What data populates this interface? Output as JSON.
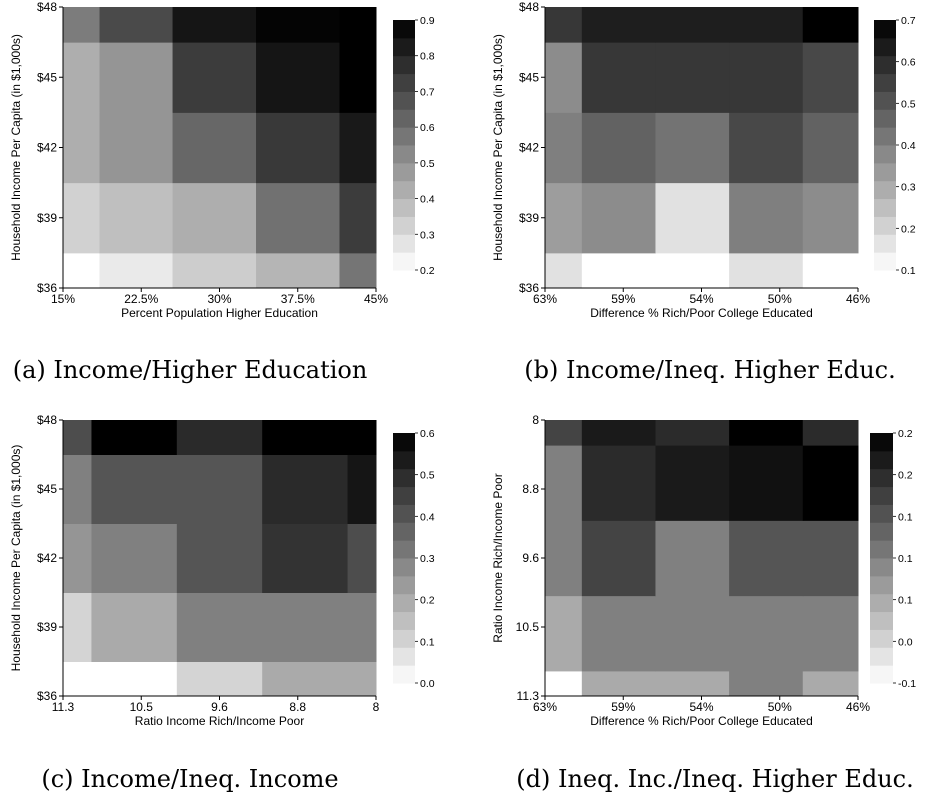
{
  "chart_data": [
    {
      "type": "heatmap",
      "caption": "(a) Income/Higher Education",
      "xlabel": "Percent Population Higher Education",
      "ylabel": "Household Income Per Capita (in $1,000s)",
      "xticks": [
        "15%",
        "22.5%",
        "30%",
        "37.5%",
        "45%"
      ],
      "yticks": [
        "$36",
        "$39",
        "$42",
        "$45",
        "$48"
      ],
      "x_edges": [
        15,
        18.5,
        25.5,
        33.5,
        41.5,
        45
      ],
      "y_edges": [
        36,
        37.5,
        40.5,
        43.5,
        46.5,
        48
      ],
      "z": [
        [
          0.2,
          0.26,
          0.34,
          0.41,
          0.59
        ],
        [
          0.33,
          0.38,
          0.43,
          0.6,
          0.75
        ],
        [
          0.43,
          0.5,
          0.63,
          0.76,
          0.85
        ],
        [
          0.43,
          0.5,
          0.75,
          0.86,
          0.93
        ],
        [
          0.57,
          0.71,
          0.86,
          0.91,
          0.93
        ]
      ],
      "colorbar": {
        "min": 0.2,
        "max": 0.92,
        "ticks": [
          "0.2",
          "0.3",
          "0.4",
          "0.5",
          "0.6",
          "0.7",
          "0.8",
          "0.9"
        ]
      }
    },
    {
      "type": "heatmap",
      "caption": "(b) Income/Ineq. Higher Educ.",
      "xlabel": "Difference % Rich/Poor College Educated",
      "ylabel": "Household Income Per Capita (in $1,000s)",
      "xticks": [
        "63%",
        "59%",
        "54%",
        "50%",
        "46%"
      ],
      "yticks": [
        "$36",
        "$39",
        "$42",
        "$45",
        "$48"
      ],
      "x_edges": [
        63,
        61,
        57,
        53,
        49,
        46
      ],
      "y_edges": [
        36,
        37.5,
        40.5,
        43.5,
        46.5,
        48
      ],
      "z": [
        [
          0.17,
          0.1,
          0.1,
          0.17,
          0.1
        ],
        [
          0.33,
          0.37,
          0.17,
          0.4,
          0.37
        ],
        [
          0.4,
          0.47,
          0.43,
          0.53,
          0.47
        ],
        [
          0.37,
          0.57,
          0.57,
          0.57,
          0.53
        ],
        [
          0.57,
          0.63,
          0.63,
          0.63,
          0.7
        ]
      ],
      "colorbar": {
        "min": 0.1,
        "max": 0.7,
        "ticks": [
          "0.1",
          "0.2",
          "0.3",
          "0.4",
          "0.5",
          "0.6",
          "0.7"
        ]
      }
    },
    {
      "type": "heatmap",
      "caption": "(c) Income/Ineq. Income",
      "xlabel": "Ratio Income Rich/Income Poor",
      "ylabel": "Household Income Per Capita (in $1,000s)",
      "xticks": [
        "11.3",
        "10.5",
        "9.6",
        "8.8",
        "8"
      ],
      "yticks": [
        "$36",
        "$39",
        "$42",
        "$45",
        "$48"
      ],
      "x_edges": [
        11.3,
        11.0,
        10.1,
        9.2,
        8.3,
        8.0
      ],
      "y_edges": [
        36,
        37.5,
        40.5,
        43.5,
        46.5,
        48
      ],
      "z": [
        [
          0.0,
          0.0,
          0.1,
          0.2,
          0.2
        ],
        [
          0.1,
          0.2,
          0.3,
          0.3,
          0.3
        ],
        [
          0.25,
          0.3,
          0.4,
          0.48,
          0.42
        ],
        [
          0.3,
          0.4,
          0.4,
          0.5,
          0.55
        ],
        [
          0.42,
          0.6,
          0.5,
          0.6,
          0.6
        ]
      ],
      "colorbar": {
        "min": 0.0,
        "max": 0.6,
        "ticks": [
          "0.0",
          "0.1",
          "0.2",
          "0.3",
          "0.4",
          "0.5",
          "0.6"
        ]
      }
    },
    {
      "type": "heatmap",
      "caption": "(d) Ineq. Inc./Ineq. Higher Educ.",
      "xlabel": "Difference % Rich/Poor College Educated",
      "ylabel": "Ratio Income Rich/Income Poor",
      "xticks": [
        "63%",
        "59%",
        "54%",
        "50%",
        "46%"
      ],
      "yticks": [
        "11.3",
        "10.5",
        "9.6",
        "8.8",
        "8"
      ],
      "x_edges": [
        63,
        61,
        57,
        53,
        49,
        46
      ],
      "y_edges": [
        11.3,
        11.0,
        10.1,
        9.2,
        8.3,
        8.0
      ],
      "z": [
        [
          -0.1,
          0.0,
          0.0,
          0.05,
          0.0
        ],
        [
          0.0,
          0.05,
          0.05,
          0.05,
          0.05
        ],
        [
          0.05,
          0.12,
          0.05,
          0.1,
          0.1
        ],
        [
          0.05,
          0.15,
          0.17,
          0.18,
          0.2
        ],
        [
          0.12,
          0.17,
          0.15,
          0.2,
          0.15
        ]
      ],
      "colorbar": {
        "min": -0.1,
        "max": 0.2,
        "ticks": [
          "-0.1",
          "0.0",
          "0.1",
          "0.1",
          "0.1",
          "0.2",
          "0.2"
        ]
      }
    }
  ]
}
